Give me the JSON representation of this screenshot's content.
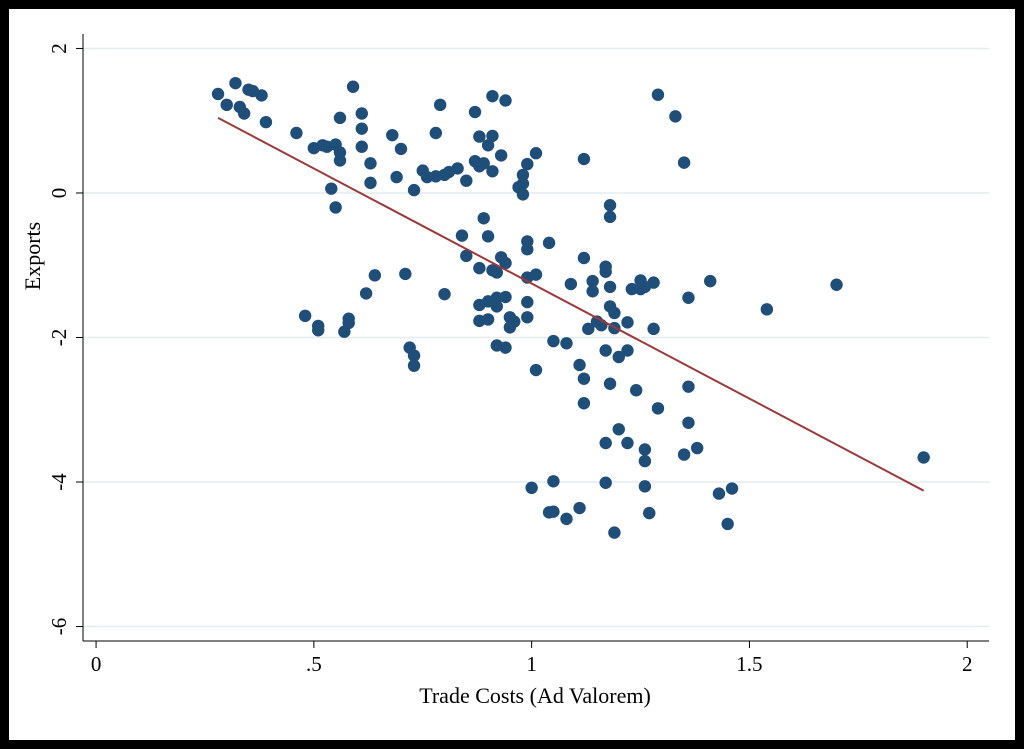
{
  "chart_data": {
    "type": "scatter",
    "xlabel": "Trade Costs (Ad Valorem)",
    "ylabel": "Exports",
    "xlim": [
      -0.03,
      2.05
    ],
    "ylim": [
      -6.2,
      2.2
    ],
    "xticks": [
      0,
      0.5,
      1,
      1.5,
      2
    ],
    "xtick_labels": [
      "0",
      ".5",
      "1",
      "1.5",
      "2"
    ],
    "yticks": [
      2,
      0,
      -2,
      -4,
      -6
    ],
    "ytick_labels": [
      "2",
      "0",
      "-2",
      "-4",
      "-6"
    ],
    "grid": "horizontal",
    "colors": {
      "points": "#1f4e79",
      "fit_line": "#9b3a3a"
    },
    "fit_line": {
      "x": [
        0.28,
        1.9
      ],
      "y": [
        1.04,
        -4.12
      ]
    },
    "points": [
      [
        0.28,
        1.37
      ],
      [
        0.3,
        1.22
      ],
      [
        0.32,
        1.52
      ],
      [
        0.33,
        1.19
      ],
      [
        0.34,
        1.1
      ],
      [
        0.35,
        1.43
      ],
      [
        0.36,
        1.41
      ],
      [
        0.38,
        1.35
      ],
      [
        0.39,
        0.98
      ],
      [
        0.46,
        0.83
      ],
      [
        0.5,
        0.62
      ],
      [
        0.52,
        0.66
      ],
      [
        0.53,
        0.64
      ],
      [
        0.54,
        0.06
      ],
      [
        0.55,
        0.67
      ],
      [
        0.55,
        -0.2
      ],
      [
        0.56,
        0.56
      ],
      [
        0.56,
        0.45
      ],
      [
        0.56,
        1.04
      ],
      [
        0.59,
        1.47
      ],
      [
        0.61,
        1.1
      ],
      [
        0.61,
        0.89
      ],
      [
        0.61,
        0.64
      ],
      [
        0.63,
        0.41
      ],
      [
        0.63,
        0.14
      ],
      [
        0.68,
        0.8
      ],
      [
        0.69,
        0.22
      ],
      [
        0.7,
        0.61
      ],
      [
        0.73,
        0.04
      ],
      [
        0.75,
        0.31
      ],
      [
        0.76,
        0.22
      ],
      [
        0.78,
        0.23
      ],
      [
        0.78,
        0.83
      ],
      [
        0.79,
        1.22
      ],
      [
        0.8,
        0.25
      ],
      [
        0.81,
        0.29
      ],
      [
        0.83,
        0.34
      ],
      [
        0.85,
        0.17
      ],
      [
        0.87,
        1.12
      ],
      [
        0.87,
        0.44
      ],
      [
        0.88,
        0.37
      ],
      [
        0.88,
        0.78
      ],
      [
        0.89,
        0.41
      ],
      [
        0.9,
        0.66
      ],
      [
        0.91,
        0.79
      ],
      [
        0.91,
        1.34
      ],
      [
        0.91,
        0.3
      ],
      [
        0.93,
        0.52
      ],
      [
        0.94,
        1.28
      ],
      [
        0.97,
        0.08
      ],
      [
        0.98,
        0.13
      ],
      [
        0.98,
        0.25
      ],
      [
        0.98,
        -0.02
      ],
      [
        0.99,
        0.4
      ],
      [
        1.01,
        0.55
      ],
      [
        1.12,
        0.47
      ],
      [
        1.29,
        1.36
      ],
      [
        1.33,
        1.06
      ],
      [
        1.35,
        0.42
      ],
      [
        0.48,
        -1.7
      ],
      [
        0.51,
        -1.84
      ],
      [
        0.51,
        -1.9
      ],
      [
        0.57,
        -1.92
      ],
      [
        0.58,
        -1.8
      ],
      [
        0.58,
        -1.74
      ],
      [
        0.62,
        -1.39
      ],
      [
        0.64,
        -1.14
      ],
      [
        0.71,
        -1.12
      ],
      [
        0.72,
        -2.14
      ],
      [
        0.73,
        -2.25
      ],
      [
        0.73,
        -2.39
      ],
      [
        0.8,
        -1.4
      ],
      [
        0.84,
        -0.59
      ],
      [
        0.85,
        -0.87
      ],
      [
        0.88,
        -1.04
      ],
      [
        0.88,
        -1.55
      ],
      [
        0.88,
        -1.77
      ],
      [
        0.89,
        -0.35
      ],
      [
        0.9,
        -0.6
      ],
      [
        0.9,
        -1.5
      ],
      [
        0.9,
        -1.75
      ],
      [
        0.91,
        -1.07
      ],
      [
        0.92,
        -1.1
      ],
      [
        0.92,
        -1.45
      ],
      [
        0.92,
        -1.57
      ],
      [
        0.92,
        -2.11
      ],
      [
        0.93,
        -0.89
      ],
      [
        0.94,
        -0.97
      ],
      [
        0.94,
        -1.44
      ],
      [
        0.94,
        -2.14
      ],
      [
        0.95,
        -1.72
      ],
      [
        0.95,
        -1.86
      ],
      [
        0.96,
        -1.78
      ],
      [
        0.99,
        -0.67
      ],
      [
        0.99,
        -0.78
      ],
      [
        0.99,
        -1.17
      ],
      [
        0.99,
        -1.51
      ],
      [
        0.99,
        -1.72
      ],
      [
        1.01,
        -1.13
      ],
      [
        1.01,
        -2.45
      ],
      [
        1.04,
        -0.69
      ],
      [
        1.05,
        -2.05
      ],
      [
        1.08,
        -2.08
      ],
      [
        1.09,
        -1.26
      ],
      [
        1.11,
        -2.38
      ],
      [
        1.12,
        -0.9
      ],
      [
        1.12,
        -2.57
      ],
      [
        1.13,
        -1.88
      ],
      [
        1.14,
        -1.22
      ],
      [
        1.14,
        -1.36
      ],
      [
        1.15,
        -1.78
      ],
      [
        1.16,
        -1.83
      ],
      [
        1.17,
        -1.02
      ],
      [
        1.17,
        -1.09
      ],
      [
        1.17,
        -2.18
      ],
      [
        1.18,
        -2.64
      ],
      [
        1.18,
        -0.17
      ],
      [
        1.18,
        -0.33
      ],
      [
        1.18,
        -1.3
      ],
      [
        1.18,
        -1.57
      ],
      [
        1.19,
        -1.66
      ],
      [
        1.19,
        -1.87
      ],
      [
        1.2,
        -2.27
      ],
      [
        1.22,
        -1.79
      ],
      [
        1.22,
        -2.18
      ],
      [
        1.23,
        -1.33
      ],
      [
        1.24,
        -2.73
      ],
      [
        1.25,
        -1.21
      ],
      [
        1.25,
        -1.33
      ],
      [
        1.26,
        -1.3
      ],
      [
        1.28,
        -1.24
      ],
      [
        1.28,
        -1.88
      ],
      [
        1.36,
        -1.45
      ],
      [
        1.36,
        -2.68
      ],
      [
        1.41,
        -1.22
      ],
      [
        1.54,
        -1.61
      ],
      [
        1.7,
        -1.27
      ],
      [
        1.0,
        -4.08
      ],
      [
        1.04,
        -4.42
      ],
      [
        1.05,
        -3.99
      ],
      [
        1.05,
        -4.41
      ],
      [
        1.08,
        -4.51
      ],
      [
        1.11,
        -4.36
      ],
      [
        1.12,
        -2.91
      ],
      [
        1.17,
        -3.46
      ],
      [
        1.17,
        -4.01
      ],
      [
        1.19,
        -4.7
      ],
      [
        1.2,
        -3.27
      ],
      [
        1.22,
        -3.46
      ],
      [
        1.26,
        -3.55
      ],
      [
        1.26,
        -3.71
      ],
      [
        1.26,
        -4.06
      ],
      [
        1.27,
        -4.43
      ],
      [
        1.29,
        -2.98
      ],
      [
        1.35,
        -3.62
      ],
      [
        1.36,
        -3.18
      ],
      [
        1.38,
        -3.53
      ],
      [
        1.43,
        -4.16
      ],
      [
        1.45,
        -4.58
      ],
      [
        1.46,
        -4.09
      ],
      [
        1.9,
        -3.66
      ]
    ]
  }
}
